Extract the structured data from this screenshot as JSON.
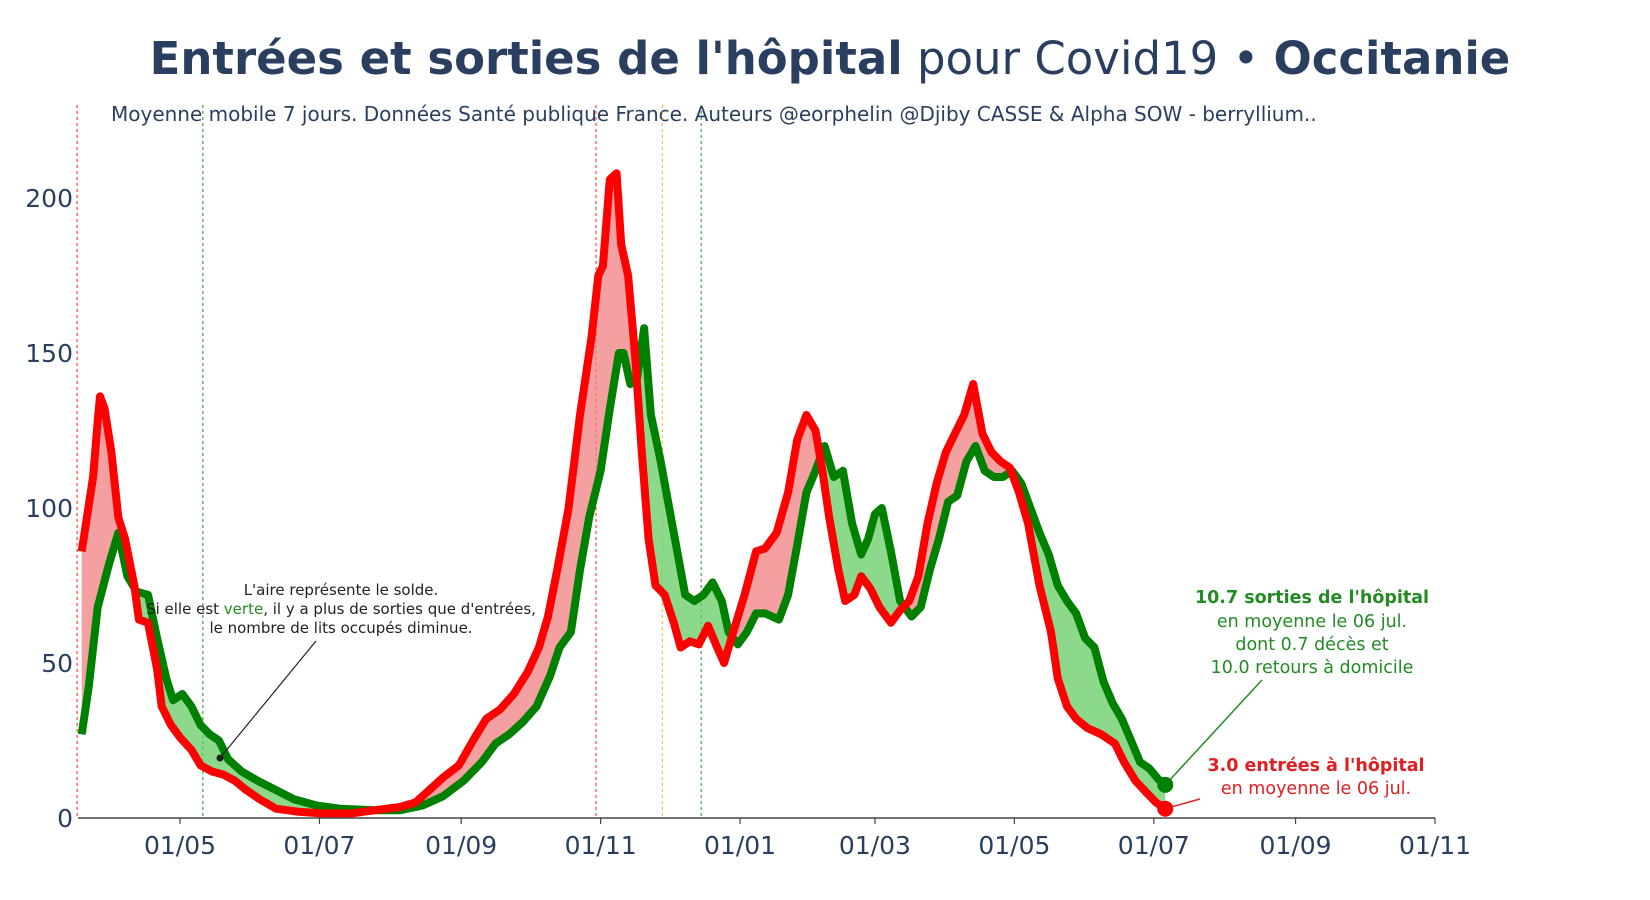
{
  "title": {
    "bold_part": "Entrées et sorties de l'hôpital",
    "regular_part": "pour Covid19 •",
    "region": "Occitanie"
  },
  "subtitle": "Moyenne mobile 7 jours. Données Santé publique France. Auteurs @eorphelin @Djiby CASSE & Alpha SOW - berryllium..",
  "annotation_solde": {
    "line1": "L'aire représente le solde.",
    "line2_pre": "Si elle est ",
    "line2_word": "verte",
    "line2_post": ", il y a plus de sorties que d'entrées,",
    "line3": "le nombre de lits occupés diminue."
  },
  "annotation_sorties": {
    "line1": "10.7 sorties de l'hôpital",
    "line2": "en moyenne le 06 jul.",
    "line3": "dont 0.7 décès et",
    "line4": "10.0 retours à domicile"
  },
  "annotation_entrees": {
    "line1": "3.0 entrées à l'hôpital",
    "line2": "en moyenne le 06 jul."
  },
  "colors": {
    "entrees": "#ff0000",
    "sorties": "#008000",
    "fill_red": "#f08080",
    "fill_green": "#66cc66",
    "text": "#2a3f5f"
  },
  "chart_data": {
    "type": "line",
    "x_unit": "date",
    "x_ticks": [
      "01/05",
      "01/07",
      "01/09",
      "01/11",
      "01/01",
      "01/03",
      "01/05",
      "01/07",
      "01/09",
      "01/11"
    ],
    "x_tick_dates": [
      "2020-05-01",
      "2020-07-01",
      "2020-09-01",
      "2020-11-01",
      "2021-01-01",
      "2021-03-01",
      "2021-05-01",
      "2021-07-01",
      "2021-09-01",
      "2021-11-01"
    ],
    "x_range": [
      "2020-03-13",
      "2021-11-01"
    ],
    "y_ticks": [
      "0",
      "50",
      "100",
      "150",
      "200"
    ],
    "y_range": [
      0,
      225
    ],
    "vertical_lines": [
      {
        "date": "2020-03-17",
        "color": "#ff0000"
      },
      {
        "date": "2020-05-11",
        "color": "#008000"
      },
      {
        "date": "2020-10-30",
        "color": "#ff0000"
      },
      {
        "date": "2020-11-28",
        "color": "#ffa500"
      },
      {
        "date": "2020-12-15",
        "color": "#008000"
      }
    ],
    "series": [
      {
        "key": "entrees",
        "points": [
          [
            "2020-03-19",
            86
          ],
          [
            "2020-03-24",
            110
          ],
          [
            "2020-03-26",
            128
          ],
          [
            "2020-03-27",
            136
          ],
          [
            "2020-03-29",
            132
          ],
          [
            "2020-04-01",
            118
          ],
          [
            "2020-04-04",
            97
          ],
          [
            "2020-04-07",
            90
          ],
          [
            "2020-04-11",
            75
          ],
          [
            "2020-04-13",
            64
          ],
          [
            "2020-04-17",
            63
          ],
          [
            "2020-04-21",
            48
          ],
          [
            "2020-04-23",
            36
          ],
          [
            "2020-04-27",
            30
          ],
          [
            "2020-05-01",
            26
          ],
          [
            "2020-05-06",
            22
          ],
          [
            "2020-05-10",
            17
          ],
          [
            "2020-05-15",
            15
          ],
          [
            "2020-05-20",
            14
          ],
          [
            "2020-05-25",
            12
          ],
          [
            "2020-05-30",
            9
          ],
          [
            "2020-06-05",
            6
          ],
          [
            "2020-06-12",
            3
          ],
          [
            "2020-06-22",
            2
          ],
          [
            "2020-07-02",
            1.5
          ],
          [
            "2020-07-15",
            1.5
          ],
          [
            "2020-07-25",
            2.5
          ],
          [
            "2020-08-05",
            3.5
          ],
          [
            "2020-08-12",
            5
          ],
          [
            "2020-08-18",
            9
          ],
          [
            "2020-08-24",
            13
          ],
          [
            "2020-08-31",
            17
          ],
          [
            "2020-09-07",
            26
          ],
          [
            "2020-09-12",
            32
          ],
          [
            "2020-09-18",
            35
          ],
          [
            "2020-09-24",
            40
          ],
          [
            "2020-09-30",
            47
          ],
          [
            "2020-10-05",
            55
          ],
          [
            "2020-10-09",
            65
          ],
          [
            "2020-10-13",
            80
          ],
          [
            "2020-10-18",
            100
          ],
          [
            "2020-10-23",
            130
          ],
          [
            "2020-10-28",
            155
          ],
          [
            "2020-10-31",
            175
          ],
          [
            "2020-11-02",
            178
          ],
          [
            "2020-11-05",
            206
          ],
          [
            "2020-11-08",
            208
          ],
          [
            "2020-11-10",
            185
          ],
          [
            "2020-11-13",
            175
          ],
          [
            "2020-11-16",
            150
          ],
          [
            "2020-11-19",
            118
          ],
          [
            "2020-11-22",
            90
          ],
          [
            "2020-11-25",
            75
          ],
          [
            "2020-11-29",
            72
          ],
          [
            "2020-12-03",
            63
          ],
          [
            "2020-12-06",
            55
          ],
          [
            "2020-12-10",
            57
          ],
          [
            "2020-12-14",
            56
          ],
          [
            "2020-12-18",
            62
          ],
          [
            "2020-12-22",
            55
          ],
          [
            "2020-12-25",
            50
          ],
          [
            "2020-12-29",
            60
          ],
          [
            "2021-01-03",
            72
          ],
          [
            "2021-01-08",
            86
          ],
          [
            "2021-01-12",
            87
          ],
          [
            "2021-01-17",
            92
          ],
          [
            "2021-01-22",
            105
          ],
          [
            "2021-01-26",
            122
          ],
          [
            "2021-01-30",
            130
          ],
          [
            "2021-02-03",
            125
          ],
          [
            "2021-02-06",
            112
          ],
          [
            "2021-02-09",
            97
          ],
          [
            "2021-02-13",
            80
          ],
          [
            "2021-02-16",
            70
          ],
          [
            "2021-02-20",
            72
          ],
          [
            "2021-02-23",
            78
          ],
          [
            "2021-02-27",
            74
          ],
          [
            "2021-03-03",
            68
          ],
          [
            "2021-03-08",
            63
          ],
          [
            "2021-03-12",
            67
          ],
          [
            "2021-03-16",
            70
          ],
          [
            "2021-03-20",
            78
          ],
          [
            "2021-03-24",
            95
          ],
          [
            "2021-03-28",
            108
          ],
          [
            "2021-04-01",
            118
          ],
          [
            "2021-04-05",
            124
          ],
          [
            "2021-04-09",
            130
          ],
          [
            "2021-04-13",
            140
          ],
          [
            "2021-04-17",
            124
          ],
          [
            "2021-04-21",
            118
          ],
          [
            "2021-04-25",
            115
          ],
          [
            "2021-04-29",
            113
          ],
          [
            "2021-05-03",
            105
          ],
          [
            "2021-05-07",
            95
          ],
          [
            "2021-05-12",
            75
          ],
          [
            "2021-05-17",
            60
          ],
          [
            "2021-05-20",
            45
          ],
          [
            "2021-05-24",
            36
          ],
          [
            "2021-05-28",
            32
          ],
          [
            "2021-06-02",
            29
          ],
          [
            "2021-06-08",
            27
          ],
          [
            "2021-06-14",
            24
          ],
          [
            "2021-06-18",
            18
          ],
          [
            "2021-06-23",
            12
          ],
          [
            "2021-06-28",
            8
          ],
          [
            "2021-07-02",
            5
          ],
          [
            "2021-07-06",
            3
          ]
        ]
      },
      {
        "key": "sorties",
        "points": [
          [
            "2020-03-19",
            27
          ],
          [
            "2020-03-22",
            42
          ],
          [
            "2020-03-26",
            68
          ],
          [
            "2020-03-31",
            82
          ],
          [
            "2020-04-04",
            92
          ],
          [
            "2020-04-08",
            78
          ],
          [
            "2020-04-12",
            73
          ],
          [
            "2020-04-17",
            72
          ],
          [
            "2020-04-21",
            58
          ],
          [
            "2020-04-25",
            45
          ],
          [
            "2020-04-28",
            38
          ],
          [
            "2020-05-02",
            40
          ],
          [
            "2020-05-06",
            36
          ],
          [
            "2020-05-10",
            30
          ],
          [
            "2020-05-14",
            27
          ],
          [
            "2020-05-18",
            25
          ],
          [
            "2020-05-22",
            19
          ],
          [
            "2020-05-28",
            15
          ],
          [
            "2020-06-04",
            12
          ],
          [
            "2020-06-12",
            9
          ],
          [
            "2020-06-20",
            6
          ],
          [
            "2020-06-30",
            4
          ],
          [
            "2020-07-10",
            3
          ],
          [
            "2020-07-25",
            2.5
          ],
          [
            "2020-08-05",
            2.5
          ],
          [
            "2020-08-15",
            4
          ],
          [
            "2020-08-24",
            7
          ],
          [
            "2020-09-02",
            12
          ],
          [
            "2020-09-10",
            18
          ],
          [
            "2020-09-16",
            24
          ],
          [
            "2020-09-22",
            27
          ],
          [
            "2020-09-28",
            31
          ],
          [
            "2020-10-04",
            36
          ],
          [
            "2020-10-10",
            46
          ],
          [
            "2020-10-14",
            55
          ],
          [
            "2020-10-19",
            60
          ],
          [
            "2020-10-23",
            80
          ],
          [
            "2020-10-27",
            97
          ],
          [
            "2020-11-01",
            112
          ],
          [
            "2020-11-05",
            132
          ],
          [
            "2020-11-09",
            150
          ],
          [
            "2020-11-11",
            150
          ],
          [
            "2020-11-14",
            140
          ],
          [
            "2020-11-17",
            142
          ],
          [
            "2020-11-20",
            158
          ],
          [
            "2020-11-23",
            130
          ],
          [
            "2020-11-27",
            116
          ],
          [
            "2020-12-01",
            100
          ],
          [
            "2020-12-04",
            88
          ],
          [
            "2020-12-08",
            72
          ],
          [
            "2020-12-12",
            70
          ],
          [
            "2020-12-16",
            72
          ],
          [
            "2020-12-20",
            76
          ],
          [
            "2020-12-24",
            70
          ],
          [
            "2020-12-27",
            60
          ],
          [
            "2020-12-31",
            56
          ],
          [
            "2021-01-04",
            60
          ],
          [
            "2021-01-08",
            66
          ],
          [
            "2021-01-12",
            66
          ],
          [
            "2021-01-18",
            64
          ],
          [
            "2021-01-22",
            72
          ],
          [
            "2021-01-26",
            88
          ],
          [
            "2021-01-30",
            105
          ],
          [
            "2021-02-03",
            112
          ],
          [
            "2021-02-07",
            120
          ],
          [
            "2021-02-11",
            110
          ],
          [
            "2021-02-15",
            112
          ],
          [
            "2021-02-19",
            95
          ],
          [
            "2021-02-23",
            85
          ],
          [
            "2021-02-26",
            90
          ],
          [
            "2021-03-01",
            98
          ],
          [
            "2021-03-04",
            100
          ],
          [
            "2021-03-08",
            86
          ],
          [
            "2021-03-12",
            70
          ],
          [
            "2021-03-17",
            65
          ],
          [
            "2021-03-21",
            68
          ],
          [
            "2021-03-25",
            80
          ],
          [
            "2021-03-29",
            90
          ],
          [
            "2021-04-02",
            102
          ],
          [
            "2021-04-06",
            104
          ],
          [
            "2021-04-10",
            115
          ],
          [
            "2021-04-14",
            120
          ],
          [
            "2021-04-18",
            112
          ],
          [
            "2021-04-22",
            110
          ],
          [
            "2021-04-26",
            110
          ],
          [
            "2021-04-30",
            112
          ],
          [
            "2021-05-04",
            108
          ],
          [
            "2021-05-08",
            100
          ],
          [
            "2021-05-12",
            92
          ],
          [
            "2021-05-16",
            85
          ],
          [
            "2021-05-20",
            75
          ],
          [
            "2021-05-24",
            70
          ],
          [
            "2021-05-28",
            66
          ],
          [
            "2021-06-01",
            58
          ],
          [
            "2021-06-05",
            55
          ],
          [
            "2021-06-09",
            44
          ],
          [
            "2021-06-13",
            37
          ],
          [
            "2021-06-17",
            32
          ],
          [
            "2021-06-21",
            25
          ],
          [
            "2021-06-25",
            18
          ],
          [
            "2021-06-29",
            16
          ],
          [
            "2021-07-03",
            12.5
          ],
          [
            "2021-07-06",
            10.7
          ]
        ]
      }
    ],
    "end_markers": [
      {
        "series": "sorties",
        "date": "2021-07-06",
        "value": 10.7
      },
      {
        "series": "entrees",
        "date": "2021-07-06",
        "value": 3.0
      }
    ]
  }
}
